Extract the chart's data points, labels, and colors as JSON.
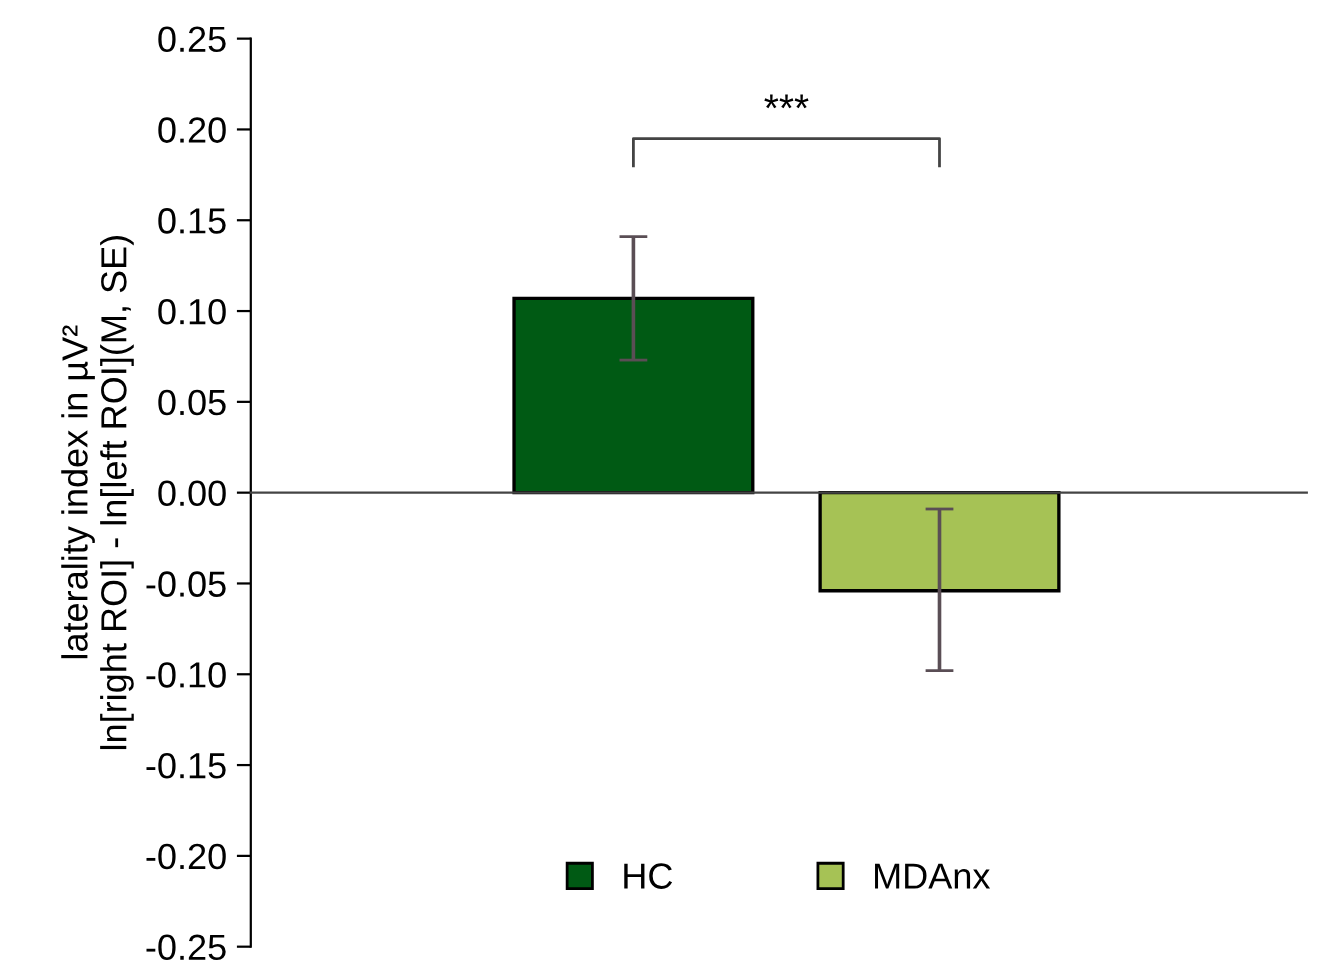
{
  "chart_data": {
    "type": "bar",
    "ylabel": "laterality index in µV²\nln[right ROI] - ln[left ROI](M, SE)",
    "categories": [
      null,
      null
    ],
    "series": [
      {
        "name": "HC",
        "color": "#005a14",
        "values": [
          0.107,
          null
        ],
        "errors": [
          [
            0.073,
            0.141
          ],
          null
        ]
      },
      {
        "name": "MDAnx",
        "color": "#a6c255",
        "values": [
          null,
          -0.054
        ],
        "errors": [
          null,
          [
            -0.098,
            -0.009
          ]
        ]
      }
    ],
    "ylim": [
      -0.25,
      0.25
    ],
    "yticks": [
      {
        "value": -0.25,
        "label": "-0.25"
      },
      {
        "value": -0.2,
        "label": "-0.20"
      },
      {
        "value": -0.15,
        "label": "-0.15"
      },
      {
        "value": -0.1,
        "label": "-0.10"
      },
      {
        "value": -0.05,
        "label": "-0.05"
      },
      {
        "value": 0,
        "label": "0.00"
      },
      {
        "value": 0.05,
        "label": "0.05"
      },
      {
        "value": 0.1,
        "label": "0.10"
      },
      {
        "value": 0.15,
        "label": "0.15"
      },
      {
        "value": 0.2,
        "label": "0.20"
      },
      {
        "value": 0.25,
        "label": "0.25"
      }
    ],
    "annotations": [
      "***"
    ],
    "legend": "bottom"
  }
}
